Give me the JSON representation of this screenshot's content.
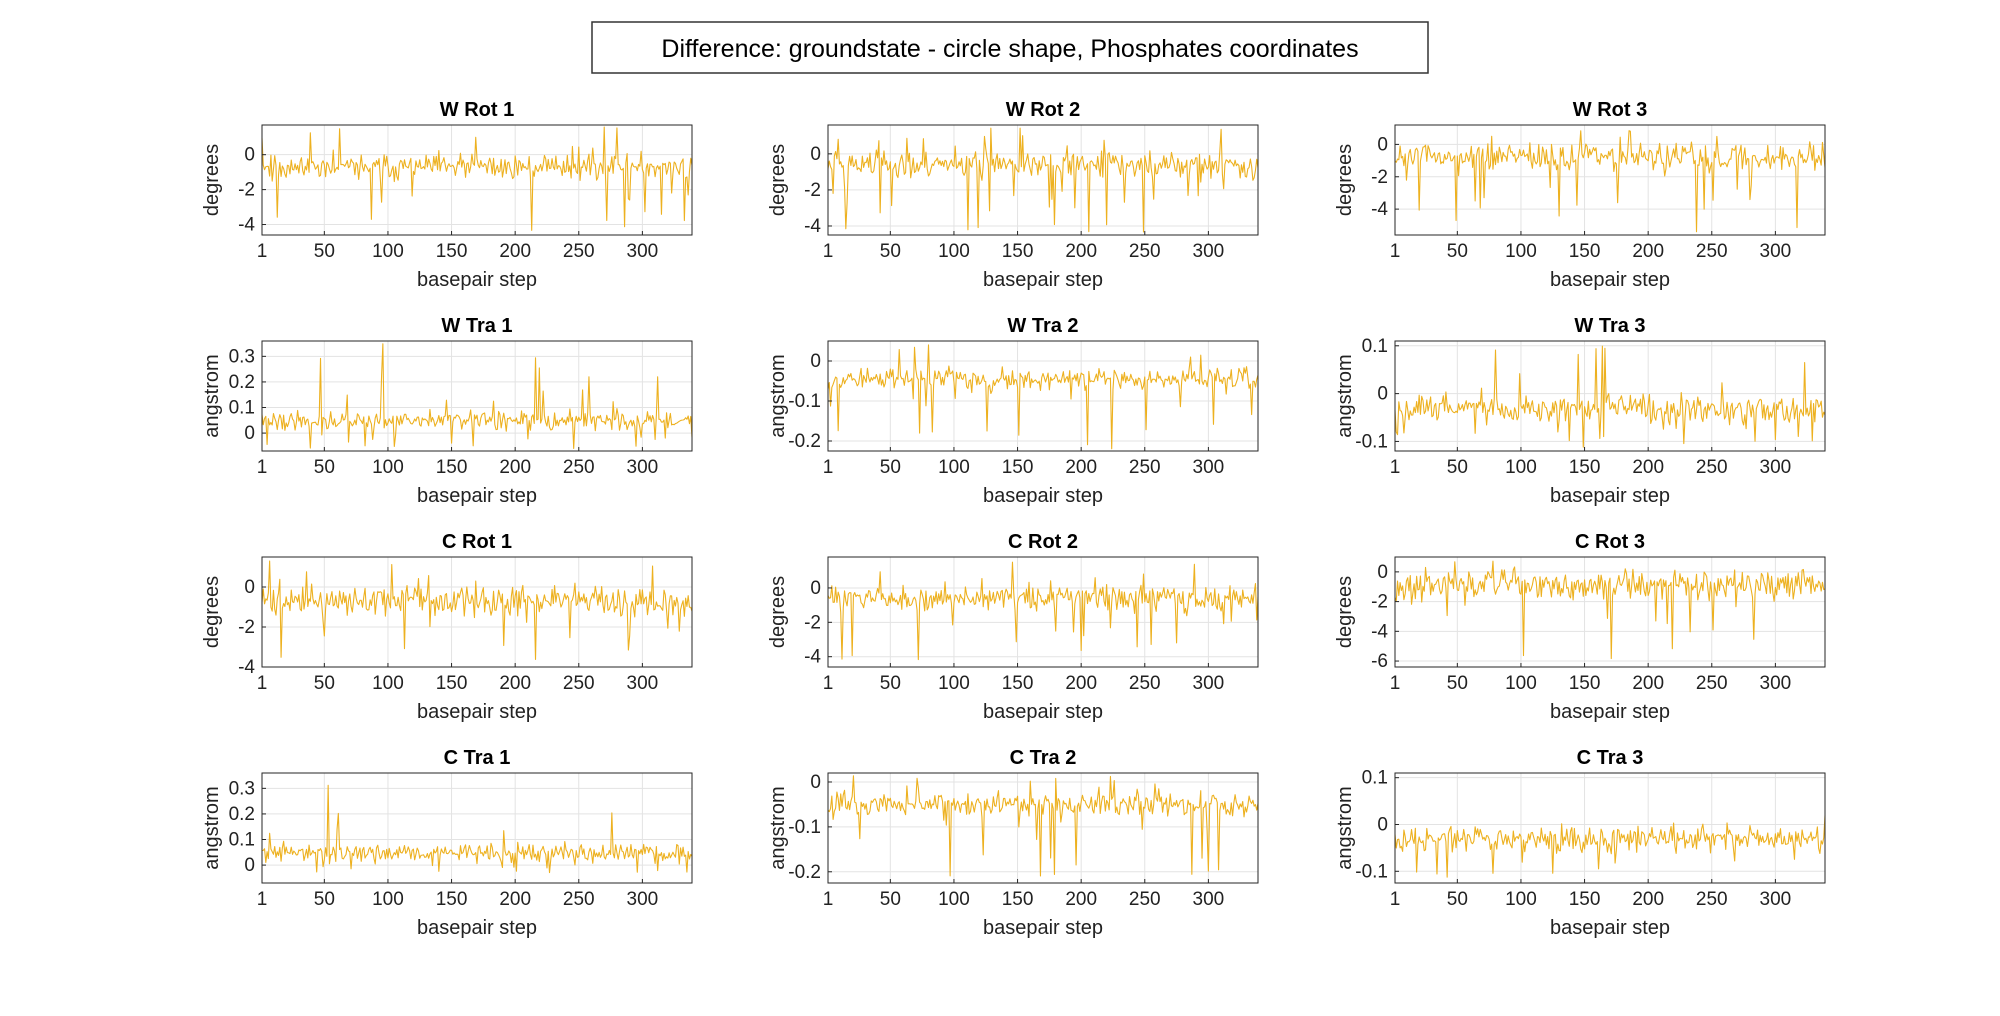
{
  "figure": {
    "title": "Difference: groundstate - circle shape, Phosphates coordinates",
    "n_points": 339,
    "line_color": "#EDB120",
    "grid": true
  },
  "chart_data": [
    {
      "type": "line",
      "title": "W Rot 1",
      "xlabel": "basepair step",
      "ylabel": "degrees",
      "xlim": [
        1,
        339
      ],
      "xticks": [
        1,
        50,
        100,
        150,
        200,
        250,
        300
      ],
      "ylim": [
        -4.6,
        1.7
      ],
      "yticks": [
        0,
        -2,
        -4
      ],
      "baseline": -0.7,
      "noise": 0.7,
      "spike_min": -4.5,
      "spike_max": 1.6,
      "seed": 11
    },
    {
      "type": "line",
      "title": "W Rot 2",
      "xlabel": "basepair step",
      "ylabel": "degrees",
      "xlim": [
        1,
        339
      ],
      "xticks": [
        1,
        50,
        100,
        150,
        200,
        250,
        300
      ],
      "ylim": [
        -4.5,
        1.6
      ],
      "yticks": [
        0,
        -2,
        -4
      ],
      "baseline": -0.6,
      "noise": 0.7,
      "spike_min": -4.4,
      "spike_max": 1.6,
      "seed": 23
    },
    {
      "type": "line",
      "title": "W Rot 3",
      "xlabel": "basepair step",
      "ylabel": "degrees",
      "xlim": [
        1,
        339
      ],
      "xticks": [
        1,
        50,
        100,
        150,
        200,
        250,
        300
      ],
      "ylim": [
        -5.6,
        1.2
      ],
      "yticks": [
        0,
        -2,
        -4
      ],
      "baseline": -0.8,
      "noise": 0.8,
      "spike_min": -5.5,
      "spike_max": 1.1,
      "seed": 37
    },
    {
      "type": "line",
      "title": "W Tra 1",
      "xlabel": "basepair step",
      "ylabel": "angstrom",
      "xlim": [
        1,
        339
      ],
      "xticks": [
        1,
        50,
        100,
        150,
        200,
        250,
        300
      ],
      "ylim": [
        -0.07,
        0.36
      ],
      "yticks": [
        0.3,
        0.2,
        0.1,
        0
      ],
      "baseline": 0.05,
      "noise": 0.035,
      "spike_min": -0.06,
      "spike_max": 0.35,
      "seed": 41
    },
    {
      "type": "line",
      "title": "W Tra 2",
      "xlabel": "basepair step",
      "ylabel": "angstrom",
      "xlim": [
        1,
        339
      ],
      "xticks": [
        1,
        50,
        100,
        150,
        200,
        250,
        300
      ],
      "ylim": [
        -0.225,
        0.05
      ],
      "yticks": [
        0,
        -0.1,
        -0.2
      ],
      "baseline": -0.045,
      "noise": 0.025,
      "spike_min": -0.22,
      "spike_max": 0.045,
      "seed": 53
    },
    {
      "type": "line",
      "title": "W Tra 3",
      "xlabel": "basepair step",
      "ylabel": "angstrom",
      "xlim": [
        1,
        339
      ],
      "xticks": [
        1,
        50,
        100,
        150,
        200,
        250,
        300
      ],
      "ylim": [
        -0.12,
        0.11
      ],
      "yticks": [
        0.1,
        0,
        -0.1
      ],
      "baseline": -0.03,
      "noise": 0.025,
      "spike_min": -0.115,
      "spike_max": 0.1,
      "seed": 67
    },
    {
      "type": "line",
      "title": "C Rot 1",
      "xlabel": "basepair step",
      "ylabel": "degrees",
      "xlim": [
        1,
        339
      ],
      "xticks": [
        1,
        50,
        100,
        150,
        200,
        250,
        300
      ],
      "ylim": [
        -4.0,
        1.5
      ],
      "yticks": [
        0,
        -2,
        -4
      ],
      "baseline": -0.7,
      "noise": 0.7,
      "spike_min": -3.9,
      "spike_max": 1.4,
      "seed": 71
    },
    {
      "type": "line",
      "title": "C Rot 2",
      "xlabel": "basepair step",
      "ylabel": "degrees",
      "xlim": [
        1,
        339
      ],
      "xticks": [
        1,
        50,
        100,
        150,
        200,
        250,
        300
      ],
      "ylim": [
        -4.6,
        1.8
      ],
      "yticks": [
        0,
        -2,
        -4
      ],
      "baseline": -0.6,
      "noise": 0.7,
      "spike_min": -4.5,
      "spike_max": 1.7,
      "seed": 83
    },
    {
      "type": "line",
      "title": "C Rot 3",
      "xlabel": "basepair step",
      "ylabel": "degrees",
      "xlim": [
        1,
        339
      ],
      "xticks": [
        1,
        50,
        100,
        150,
        200,
        250,
        300
      ],
      "ylim": [
        -6.4,
        1.0
      ],
      "yticks": [
        0,
        -2,
        -4,
        -6
      ],
      "baseline": -0.9,
      "noise": 0.9,
      "spike_min": -6.2,
      "spike_max": 0.9,
      "seed": 97
    },
    {
      "type": "line",
      "title": "C Tra 1",
      "xlabel": "basepair step",
      "ylabel": "angstrom",
      "xlim": [
        1,
        339
      ],
      "xticks": [
        1,
        50,
        100,
        150,
        200,
        250,
        300
      ],
      "ylim": [
        -0.07,
        0.36
      ],
      "yticks": [
        0.3,
        0.2,
        0.1,
        0
      ],
      "baseline": 0.05,
      "noise": 0.035,
      "spike_min": -0.06,
      "spike_max": 0.35,
      "seed": 101
    },
    {
      "type": "line",
      "title": "C Tra 2",
      "xlabel": "basepair step",
      "ylabel": "angstrom",
      "xlim": [
        1,
        339
      ],
      "xticks": [
        1,
        50,
        100,
        150,
        200,
        250,
        300
      ],
      "ylim": [
        -0.225,
        0.02
      ],
      "yticks": [
        0,
        -0.1,
        -0.2
      ],
      "baseline": -0.05,
      "noise": 0.025,
      "spike_min": -0.22,
      "spike_max": 0.015,
      "seed": 113
    },
    {
      "type": "line",
      "title": "C Tra 3",
      "xlabel": "basepair step",
      "ylabel": "angstrom",
      "xlim": [
        1,
        339
      ],
      "xticks": [
        1,
        50,
        100,
        150,
        200,
        250,
        300
      ],
      "ylim": [
        -0.125,
        0.11
      ],
      "yticks": [
        0.1,
        0,
        -0.1
      ],
      "baseline": -0.03,
      "noise": 0.025,
      "spike_min": -0.12,
      "spike_max": 0.1,
      "seed": 127
    }
  ]
}
